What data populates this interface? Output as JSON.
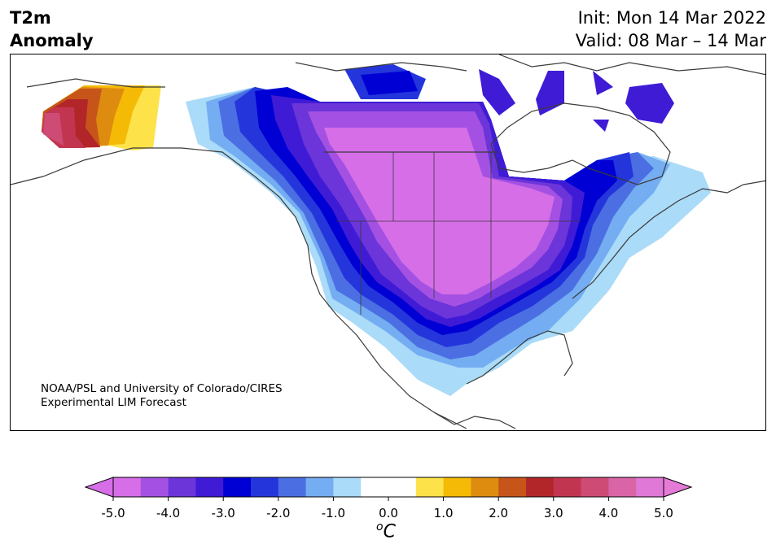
{
  "title": {
    "left_line1": "T2m",
    "left_line2": "Anomaly",
    "init": "Init: Mon 14 Mar 2022",
    "valid": "Valid: 08 Mar – 14 Mar"
  },
  "credit": {
    "line1": "NOAA/PSL and University of Colorado/CIRES",
    "line2": "Experimental LIM Forecast"
  },
  "colorbar": {
    "unit_base": "C",
    "unit_sup": "o",
    "ticks": [
      "-5.0",
      "-4.0",
      "-3.0",
      "-2.0",
      "-1.0",
      "0.0",
      "1.0",
      "2.0",
      "3.0",
      "4.0",
      "5.0"
    ],
    "colors": [
      "#d66ee8",
      "#a451e3",
      "#6c35d9",
      "#3f1bd6",
      "#0000d4",
      "#2436db",
      "#4b6fe3",
      "#74adf1",
      "#aadbf8",
      "#ffffff",
      "#ffffff",
      "#fde24a",
      "#f4ba06",
      "#de8c10",
      "#c7551a",
      "#b22629",
      "#c23550",
      "#ce4b76",
      "#d965a6",
      "#e078d8"
    ],
    "over_color": "#e57ad7",
    "under_color": "#d66ee8"
  }
}
